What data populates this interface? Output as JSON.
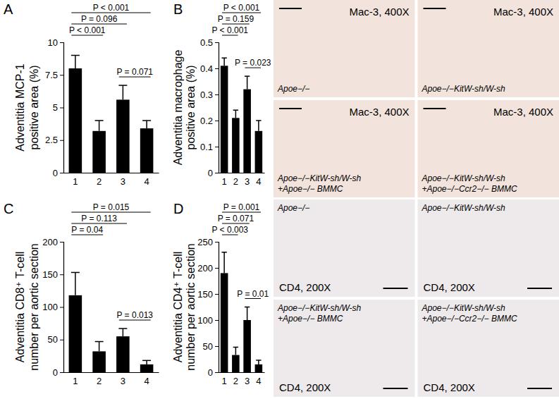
{
  "chart_data": [
    {
      "type": "bar",
      "panel": "A",
      "y_label": [
        "Adventitia MCP-1",
        "positive area (%)"
      ],
      "categories": [
        "1",
        "2",
        "3",
        "4"
      ],
      "values": [
        8.0,
        3.2,
        5.6,
        3.4
      ],
      "errors": [
        1.0,
        0.8,
        1.1,
        0.6
      ],
      "color": "#000000",
      "ylim": [
        0,
        10
      ],
      "yticks": [
        0,
        2.5,
        5,
        7.5,
        10
      ],
      "annotations": [
        {
          "text": "P < 0.001",
          "between": [
            "1",
            "4"
          ]
        },
        {
          "text": "P = 0.096",
          "between": [
            "1",
            "3"
          ]
        },
        {
          "text": "P < 0.001",
          "between": [
            "1",
            "2"
          ]
        },
        {
          "text": "P = 0.071",
          "between": [
            "3",
            "4"
          ]
        }
      ]
    },
    {
      "type": "bar",
      "panel": "B",
      "y_label": [
        "Adventitia macrophage",
        "positive area (%)"
      ],
      "categories": [
        "1",
        "2",
        "3",
        "4"
      ],
      "values": [
        0.41,
        0.21,
        0.32,
        0.16
      ],
      "errors": [
        0.03,
        0.03,
        0.05,
        0.04
      ],
      "color": "#000000",
      "ylim": [
        0,
        0.5
      ],
      "yticks": [
        0,
        0.1,
        0.2,
        0.3,
        0.4,
        0.5
      ],
      "annotations": [
        {
          "text": "P < 0.001",
          "between": [
            "1",
            "4"
          ]
        },
        {
          "text": "P = 0.159",
          "between": [
            "1",
            "3"
          ]
        },
        {
          "text": "P < 0.001",
          "between": [
            "1",
            "2"
          ]
        },
        {
          "text": "P = 0.023",
          "between": [
            "3",
            "4"
          ]
        }
      ],
      "images": [
        {
          "stain": "Mac-3, 400X",
          "label": [
            "Apoe−/−"
          ]
        },
        {
          "stain": "Mac-3, 400X",
          "label": [
            "Apoe−/−KitW-sh/W-sh"
          ]
        },
        {
          "stain": "Mac-3, 400X",
          "label": [
            "Apoe−/−KitW-sh/W-sh",
            "+Apoe−/− BMMC"
          ]
        },
        {
          "stain": "Mac-3, 400X",
          "label": [
            "Apoe−/−KitW-sh/W-sh",
            "+Apoe−/−Ccr2−/− BMMC"
          ]
        }
      ]
    },
    {
      "type": "bar",
      "panel": "C",
      "y_label": [
        "Adventitia CD8⁺ T-cell",
        "number per aortic section"
      ],
      "categories": [
        "1",
        "2",
        "3",
        "4"
      ],
      "values": [
        118,
        32,
        55,
        12
      ],
      "errors": [
        35,
        15,
        12,
        6
      ],
      "color": "#000000",
      "ylim": [
        0,
        200
      ],
      "yticks": [
        0,
        50,
        100,
        150,
        200
      ],
      "annotations": [
        {
          "text": "P = 0.015",
          "between": [
            "1",
            "4"
          ]
        },
        {
          "text": "P = 0.113",
          "between": [
            "1",
            "3"
          ]
        },
        {
          "text": "P = 0.04",
          "between": [
            "1",
            "2"
          ]
        },
        {
          "text": "P = 0.013",
          "between": [
            "3",
            "4"
          ]
        }
      ]
    },
    {
      "type": "bar",
      "panel": "D",
      "y_label": [
        "Adventitia CD4⁺ T-cell",
        "number per aortic section"
      ],
      "categories": [
        "1",
        "2",
        "3",
        "4"
      ],
      "values": [
        190,
        33,
        100,
        15
      ],
      "errors": [
        40,
        15,
        25,
        8
      ],
      "color": "#000000",
      "ylim": [
        0,
        250
      ],
      "yticks": [
        0,
        50,
        100,
        150,
        200,
        250
      ],
      "annotations": [
        {
          "text": "P = 0.001",
          "between": [
            "1",
            "4"
          ]
        },
        {
          "text": "P = 0.071",
          "between": [
            "1",
            "3"
          ]
        },
        {
          "text": "P < 0.003",
          "between": [
            "1",
            "2"
          ]
        },
        {
          "text": "P = 0.01",
          "between": [
            "3",
            "4"
          ]
        }
      ],
      "images": [
        {
          "stain": "CD4, 200X",
          "label": [
            "Apoe−/−"
          ]
        },
        {
          "stain": "CD4, 200X",
          "label": [
            "Apoe−/−KitW-sh/W-sh"
          ]
        },
        {
          "stain": "CD4, 200X",
          "label": [
            "Apoe−/−KitW-sh/W-sh",
            "+Apoe−/− BMMC"
          ]
        },
        {
          "stain": "CD4, 200X",
          "label": [
            "Apoe−/−KitW-sh/W-sh",
            "+Apoe−/−Ccr2−/− BMMC"
          ]
        }
      ]
    }
  ]
}
